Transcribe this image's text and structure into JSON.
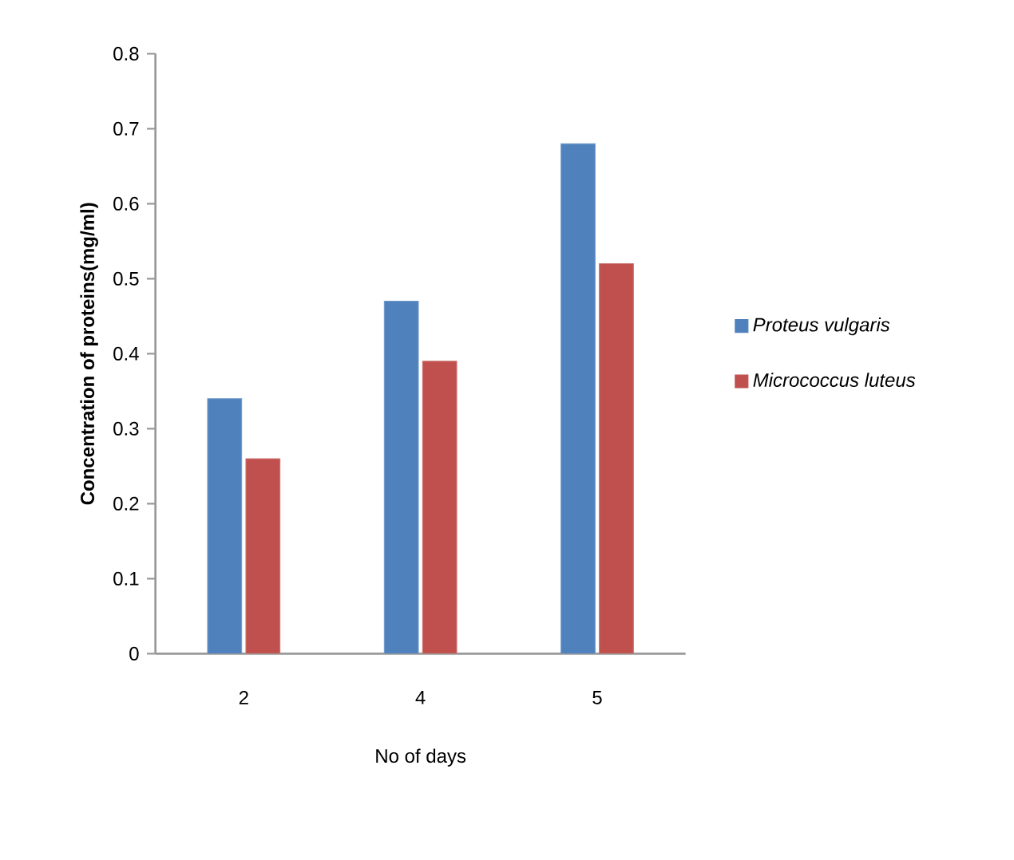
{
  "chart_data": {
    "type": "bar",
    "xlabel": "No of days",
    "ylabel": "Concentration of proteins(mg/ml)",
    "categories": [
      "2",
      "4",
      "5"
    ],
    "series": [
      {
        "name": "*Proteus vulgaris*",
        "color": "#4f81bd",
        "values": [
          0.34,
          0.47,
          0.68
        ]
      },
      {
        "name": "*Micrococcus  luteus*",
        "color": "#c0504d",
        "values": [
          0.26,
          0.39,
          0.52
        ]
      }
    ],
    "ylim": [
      0,
      0.8
    ],
    "yticks": [
      0,
      0.1,
      0.2,
      0.3,
      0.4,
      0.5,
      0.6,
      0.7,
      0.8
    ],
    "grid": false,
    "legend": "right"
  }
}
